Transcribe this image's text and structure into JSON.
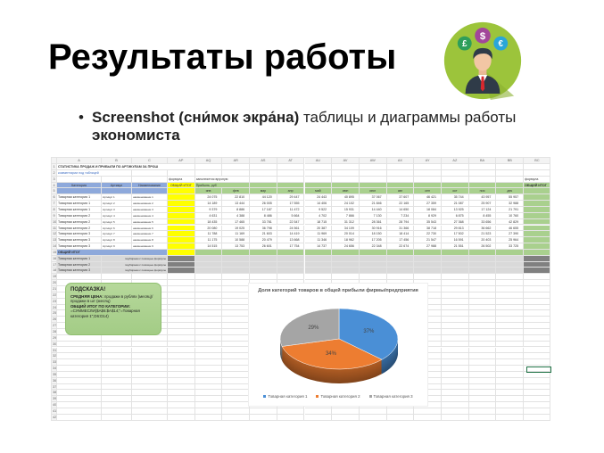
{
  "slide": {
    "title": "Результаты работы",
    "bullet_parts": [
      "Screenshot (сни́мок экра́на)",
      " таблицы и диаграммы работы ",
      "экономиста"
    ]
  },
  "sheet": {
    "columns": [
      "",
      "A",
      "B",
      "C",
      "AP",
      "AQ",
      "AR",
      "AS",
      "AT",
      "AU",
      "AV",
      "AW",
      "AX",
      "AY",
      "AZ",
      "BA",
      "BB",
      "BC"
    ],
    "title": "СТАТИСТИКА ПРОДАЖ И ПРИБЫЛИ ПО АРТИКУЛАМ ЗА ПРОШ",
    "comment": "комментарии под таблицей",
    "formula_note": "формула",
    "manual_note": "заполняется вручную",
    "formula_note_right": "формула",
    "headers": {
      "category": "Категория",
      "article": "Артикул",
      "name": "Наименование",
      "total": "ОБЩИЙ ИТОГ",
      "profit": "Прибыль, руб",
      "total_right": "ОБЩИЙ ИТОГ"
    },
    "months": [
      "янв",
      "фев",
      "мар",
      "апр",
      "май",
      "июн",
      "июл",
      "авг",
      "сен",
      "окт",
      "ноя",
      "дек"
    ],
    "rows": [
      {
        "category": "Товарная категория 1",
        "article": "Артикул 1",
        "name": "наименование 1",
        "values": [
          "24 075",
          "22 810",
          "44 120",
          "29 447",
          "24 443",
          "40 895",
          "37 067",
          "37 607",
          "46 421",
          "35 744",
          "43 957",
          "55 957"
        ]
      },
      {
        "category": "Товарная категория 1",
        "article": "Артикул 2",
        "name": "наименование 2",
        "values": [
          "14 189",
          "13 444",
          "26 005",
          "17 555",
          "14 406",
          "24 102",
          "21 846",
          "22 165",
          "27 359",
          "21 087",
          "25 907",
          "32 988"
        ]
      },
      {
        "category": "Товарная категория 1",
        "article": "Артикул 3",
        "name": "наименование 3",
        "values": [
          "9 379",
          "8 886",
          "17 187",
          "11 472",
          "9 522",
          "15 931",
          "14 440",
          "14 650",
          "18 084",
          "13 925",
          "17 124",
          "21 791"
        ]
      },
      {
        "category": "Товарная категория 2",
        "article": "Артикул 4",
        "name": "наименование 4",
        "values": [
          "4 631",
          "4 388",
          "8 486",
          "5 664",
          "4 702",
          "7 866",
          "7 130",
          "7 234",
          "8 929",
          "6 875",
          "8 455",
          "10 760"
        ]
      },
      {
        "category": "Товарная категория 2",
        "article": "Артикул 5",
        "name": "наименование 5",
        "values": [
          "18 435",
          "17 465",
          "33 781",
          "22 547",
          "18 715",
          "31 312",
          "28 361",
          "28 794",
          "35 543",
          "27 368",
          "33 656",
          "42 829"
        ]
      },
      {
        "category": "Товарная категория 2",
        "article": "Артикул 6",
        "name": "наименование 6",
        "values": [
          "20 080",
          "19 025",
          "36 798",
          "24 561",
          "20 387",
          "34 109",
          "30 916",
          "31 366",
          "38 718",
          "29 813",
          "36 662",
          "46 655"
        ]
      },
      {
        "category": "Товарная категория 3",
        "article": "Артикул 7",
        "name": "наименование 7",
        "values": [
          "11 788",
          "11 169",
          "21 603",
          "14 419",
          "11 969",
          "20 014",
          "18 150",
          "18 414",
          "22 730",
          "17 502",
          "21 523",
          "27 390"
        ]
      },
      {
        "category": "Товарная категория 3",
        "article": "Артикул 8",
        "name": "наименование 8",
        "values": [
          "11 175",
          "10 588",
          "20 479",
          "13 668",
          "11 346",
          "18 962",
          "17 205",
          "17 456",
          "21 547",
          "16 591",
          "20 403",
          "25 964"
        ]
      },
      {
        "category": "Товарная категория 3",
        "article": "Артикул 9",
        "name": "наименование 9",
        "values": [
          "14 515",
          "13 753",
          "26 601",
          "17 754",
          "14 737",
          "24 656",
          "22 348",
          "22 674",
          "27 988",
          "21 551",
          "26 502",
          "33 725"
        ]
      }
    ],
    "grand_total": "ОБЩИЙ ИТОГ",
    "summary": [
      {
        "category": "Товарная категория 1",
        "note": "подбираем с помощью формулы"
      },
      {
        "category": "Товарная категория 2",
        "note": "подбираем с помощью формулы"
      },
      {
        "category": "Товарная категория 3",
        "note": "подбираем с помощью формулы"
      }
    ]
  },
  "hint": {
    "title": "ПОДСКАЗКА!",
    "avg_label": "СРЕДНЯЯ ЦЕНА:",
    "avg_text": " продажи в рублях (месяц)/продажи в шт (месяц)",
    "total_label": "ОБЩИЙ ИТОГ ПО КАТЕГОРИИ:",
    "total_text": "=СУММЕСЛИ($A$6:$A$14;\"=Товарная категория 1\";D6:D14)"
  },
  "chart_data": {
    "type": "pie",
    "title": "Доля категорий товаров в общей прибыли фирмы/предприятия",
    "categories": [
      "Товарная категория 1",
      "Товарная категория 2",
      "Товарная категория 3"
    ],
    "values": [
      37,
      34,
      29
    ],
    "labels": [
      "37%",
      "34%",
      "29%"
    ],
    "colors": [
      "#4A8FD6",
      "#ED7D31",
      "#A5A5A5"
    ],
    "legend": "bottom"
  },
  "colors": {
    "yellow": "#FFFF00",
    "green": "#A9D08E",
    "blue": "#8EA9DB",
    "dark_gray": "#808080",
    "light_gray": "#D9D9D9"
  }
}
